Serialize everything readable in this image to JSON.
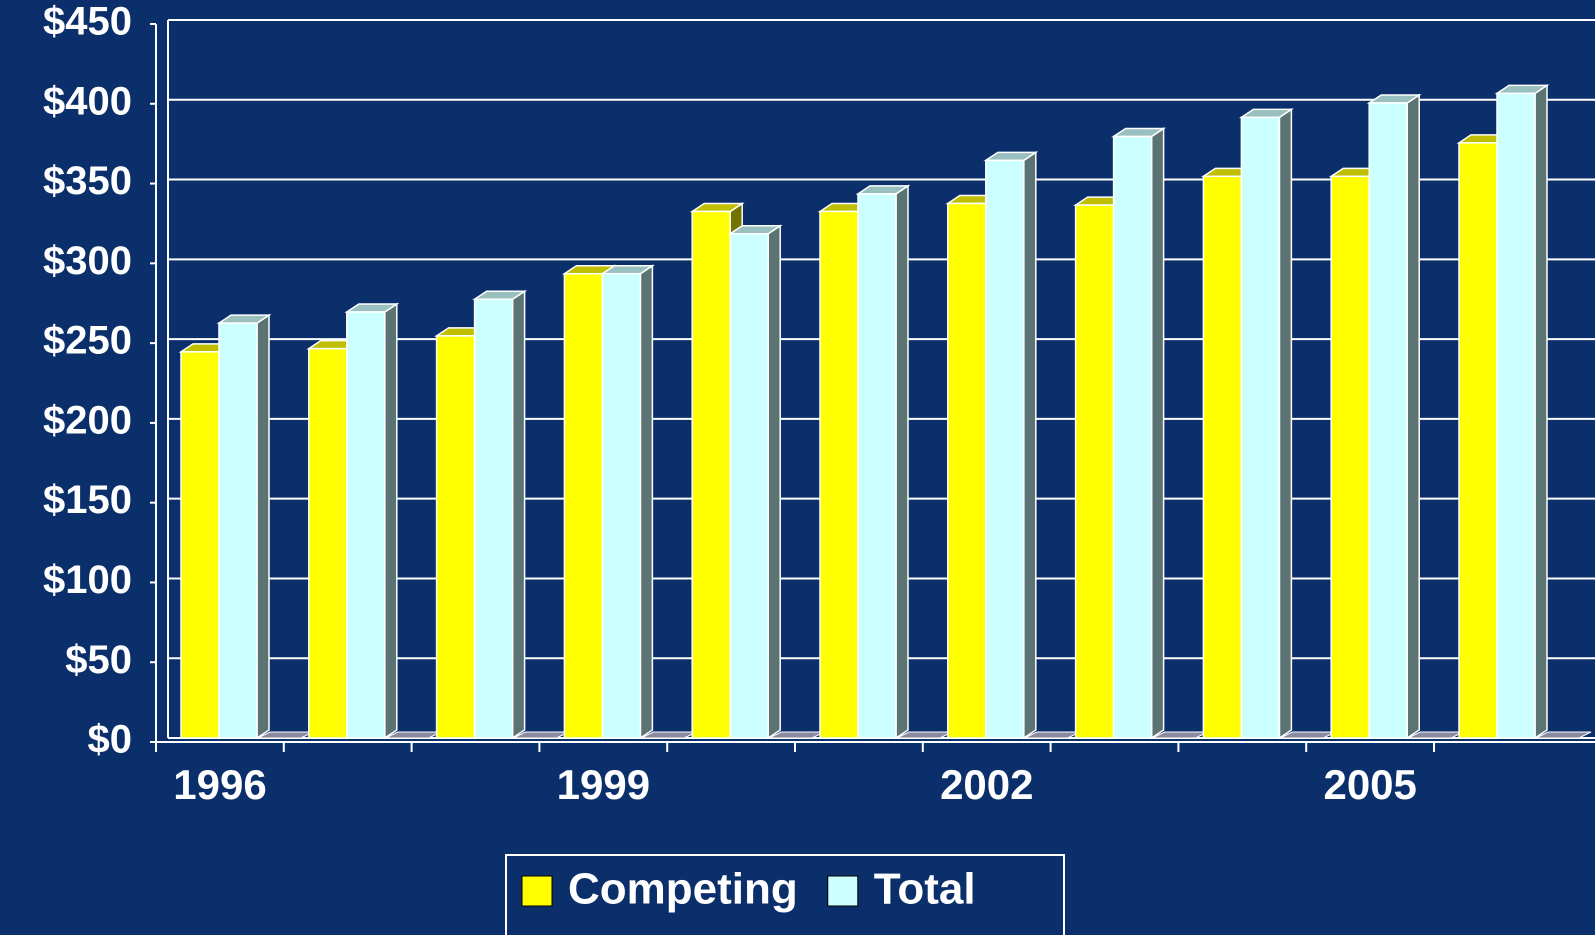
{
  "chart_data": {
    "type": "bar3d",
    "categories": [
      "1996",
      null,
      null,
      "1999",
      null,
      null,
      "2002",
      null,
      null,
      "2005",
      null
    ],
    "series": [
      {
        "name": "Competing",
        "color": "#ffff00",
        "values": [
          242,
          244,
          252,
          291,
          330,
          330,
          335,
          334,
          352,
          352,
          373
        ]
      },
      {
        "name": "Total",
        "color": "#ccffff",
        "values": [
          260,
          267,
          275,
          291,
          316,
          341,
          362,
          377,
          389,
          398,
          404
        ]
      }
    ],
    "ylim": [
      0,
      450
    ],
    "yticks": [
      {
        "value": 0,
        "label": "$0"
      },
      {
        "value": 50,
        "label": "$50"
      },
      {
        "value": 100,
        "label": "$100"
      },
      {
        "value": 150,
        "label": "$150"
      },
      {
        "value": 200,
        "label": "$200"
      },
      {
        "value": 250,
        "label": "$250"
      },
      {
        "value": 300,
        "label": "$300"
      },
      {
        "value": 350,
        "label": "$350"
      },
      {
        "value": 400,
        "label": "$400"
      },
      {
        "value": 450,
        "label": "$450"
      }
    ],
    "grid": true,
    "legend": "bottom"
  }
}
